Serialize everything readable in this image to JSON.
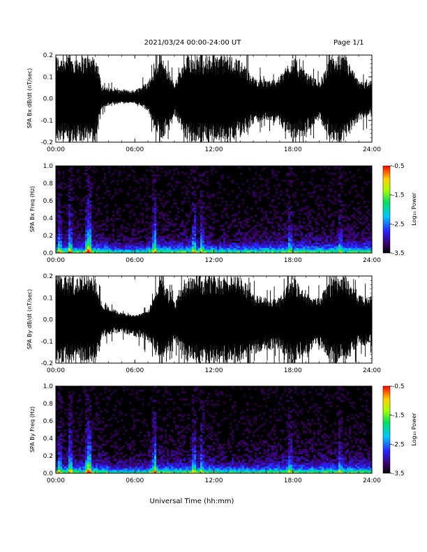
{
  "header": {
    "date_range": "2021/03/24  00:00-24:00 UT",
    "page": "Page 1/1"
  },
  "xlabel": "Universal Time (hh:mm)",
  "chart_data": [
    {
      "type": "line",
      "ylabel": "SPA Bx dB/dt (nT/sec)",
      "ylim": [
        -0.2,
        0.2
      ],
      "y_ticks": [
        "0.2",
        "0.1",
        "0.0",
        "-0.1",
        "-0.2"
      ],
      "x_ticks": [
        "00:00",
        "06:00",
        "12:00",
        "18:00",
        "24:00"
      ],
      "xlim_hours": [
        0,
        24
      ],
      "envelope": {
        "hours": [
          0,
          1,
          2,
          3,
          3.5,
          4,
          5,
          6,
          7,
          8,
          9,
          10,
          11,
          12,
          13,
          14,
          15,
          16,
          17,
          18,
          19,
          20,
          21,
          22,
          23,
          24
        ],
        "upper": [
          0.2,
          0.2,
          0.2,
          0.2,
          0.06,
          0.05,
          0.04,
          0.04,
          0.08,
          0.2,
          0.07,
          0.2,
          0.2,
          0.2,
          0.2,
          0.18,
          0.1,
          0.08,
          0.1,
          0.2,
          0.12,
          0.08,
          0.2,
          0.2,
          0.08,
          0.08
        ],
        "lower": [
          -0.2,
          -0.2,
          -0.2,
          -0.2,
          -0.05,
          -0.03,
          -0.02,
          -0.02,
          -0.06,
          -0.2,
          -0.08,
          -0.2,
          -0.2,
          -0.2,
          -0.2,
          -0.18,
          -0.12,
          -0.1,
          -0.12,
          -0.2,
          -0.16,
          -0.1,
          -0.2,
          -0.2,
          -0.1,
          -0.08
        ]
      }
    },
    {
      "type": "heatmap",
      "ylabel": "SPA Bx Freq (Hz)",
      "ylim": [
        0.0,
        1.0
      ],
      "y_ticks": [
        "1.0",
        "0.8",
        "0.6",
        "0.4",
        "0.2",
        "0.0"
      ],
      "x_ticks": [
        "00:00",
        "06:00",
        "12:00",
        "18:00",
        "24:00"
      ],
      "colorbar": {
        "label": "Log₁₀ Power",
        "ticks": [
          "-0.5",
          "-1.5",
          "-2.5",
          "-3.5"
        ],
        "range": [
          -3.5,
          -0.5
        ]
      }
    },
    {
      "type": "line",
      "ylabel": "SPA By dB/dt (nT/sec)",
      "ylim": [
        -0.2,
        0.2
      ],
      "y_ticks": [
        "0.2",
        "0.1",
        "0.0",
        "-0.1",
        "-0.2"
      ],
      "x_ticks": [
        "00:00",
        "06:00",
        "12:00",
        "18:00",
        "24:00"
      ],
      "xlim_hours": [
        0,
        24
      ],
      "envelope": {
        "hours": [
          0,
          1,
          2,
          3,
          3.5,
          4,
          5,
          6,
          7,
          8,
          9,
          10,
          11,
          12,
          13,
          14,
          15,
          16,
          17,
          18,
          19,
          20,
          21,
          22,
          23,
          24
        ],
        "upper": [
          0.2,
          0.2,
          0.2,
          0.2,
          0.08,
          0.06,
          0.03,
          0.02,
          0.04,
          0.2,
          0.08,
          0.2,
          0.2,
          0.2,
          0.2,
          0.2,
          0.12,
          0.1,
          0.1,
          0.2,
          0.12,
          0.1,
          0.2,
          0.2,
          0.12,
          0.1
        ],
        "lower": [
          -0.2,
          -0.2,
          -0.2,
          -0.2,
          -0.08,
          -0.07,
          -0.06,
          -0.08,
          -0.1,
          -0.2,
          -0.1,
          -0.2,
          -0.2,
          -0.2,
          -0.2,
          -0.2,
          -0.16,
          -0.14,
          -0.14,
          -0.2,
          -0.16,
          -0.12,
          -0.2,
          -0.2,
          -0.12,
          -0.12
        ]
      }
    },
    {
      "type": "heatmap",
      "ylabel": "SPA By Freq (Hz)",
      "ylim": [
        0.0,
        1.0
      ],
      "y_ticks": [
        "1.0",
        "0.8",
        "0.6",
        "0.4",
        "0.2",
        "0.0"
      ],
      "x_ticks": [
        "00:00",
        "06:00",
        "12:00",
        "18:00",
        "24:00"
      ],
      "colorbar": {
        "label": "Log₁₀ Power",
        "ticks": [
          "-0.5",
          "-1.5",
          "-2.5",
          "-3.5"
        ],
        "range": [
          -3.5,
          -0.5
        ]
      }
    }
  ]
}
